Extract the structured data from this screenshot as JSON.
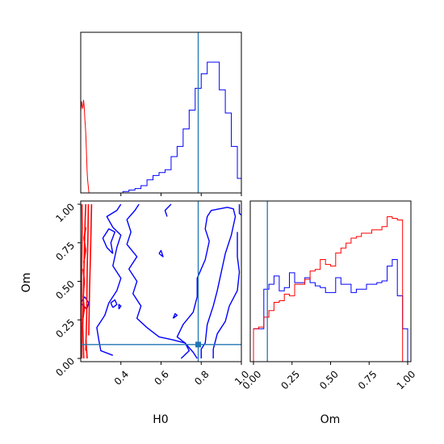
{
  "chart_data": [
    {
      "panel": "marginal-H0",
      "type": "histogram",
      "xlim": [
        0.2,
        1.0
      ],
      "truth_x": 0.785,
      "colors": {
        "blue": "#0000ff",
        "red": "#ff0000",
        "truth": "#1f77b4"
      },
      "series": [
        {
          "color": "red",
          "steps": [
            [
              0.2,
              0.56
            ],
            [
              0.202,
              0.6
            ],
            [
              0.204,
              0.63
            ],
            [
              0.206,
              0.61
            ],
            [
              0.209,
              0.58
            ],
            [
              0.212,
              0.6
            ],
            [
              0.214,
              0.64
            ],
            [
              0.217,
              0.6
            ],
            [
              0.219,
              0.55
            ],
            [
              0.221,
              0.5
            ],
            [
              0.224,
              0.44
            ],
            [
              0.226,
              0.38
            ],
            [
              0.228,
              0.3
            ],
            [
              0.23,
              0.22
            ],
            [
              0.232,
              0.14
            ],
            [
              0.235,
              0.08
            ],
            [
              0.238,
              0.04
            ],
            [
              0.24,
              0.01
            ],
            [
              0.242,
              0.0
            ]
          ]
        },
        {
          "color": "blue",
          "bins": [
            0.2,
            0.23,
            0.26,
            0.29,
            0.32,
            0.35,
            0.38,
            0.41,
            0.44,
            0.47,
            0.5,
            0.53,
            0.56,
            0.59,
            0.62,
            0.65,
            0.68,
            0.71,
            0.74,
            0.77,
            0.8,
            0.83,
            0.86,
            0.89,
            0.92,
            0.95,
            0.98,
            1.0
          ],
          "values": [
            0,
            0,
            0,
            0,
            0,
            0,
            0,
            0.01,
            0.02,
            0.03,
            0.05,
            0.09,
            0.12,
            0.14,
            0.16,
            0.25,
            0.32,
            0.44,
            0.57,
            0.72,
            0.82,
            0.9,
            0.9,
            0.71,
            0.55,
            0.32,
            0.1
          ]
        }
      ]
    },
    {
      "panel": "joint-H0-Om",
      "type": "contour",
      "xlabel": "H0",
      "ylabel": "Om",
      "xlim": [
        0.2,
        1.0
      ],
      "ylim": [
        0.0,
        1.0
      ],
      "xticks": [
        "0.4",
        "0.6",
        "0.8",
        "1.0"
      ],
      "yticks": [
        "0.00",
        "0.25",
        "0.50",
        "0.75",
        "1.00"
      ],
      "truth": [
        0.785,
        0.09
      ],
      "contours": [
        {
          "color": "blue",
          "points": [
            [
              0.4,
              1.0
            ],
            [
              0.38,
              0.96
            ],
            [
              0.33,
              0.92
            ],
            [
              0.36,
              0.85
            ],
            [
              0.4,
              0.8
            ],
            [
              0.38,
              0.72
            ],
            [
              0.36,
              0.6
            ],
            [
              0.4,
              0.52
            ],
            [
              0.38,
              0.44
            ],
            [
              0.34,
              0.36
            ],
            [
              0.32,
              0.28
            ],
            [
              0.28,
              0.2
            ],
            [
              0.29,
              0.12
            ],
            [
              0.3,
              0.05
            ],
            [
              0.36,
              0.02
            ]
          ]
        },
        {
          "color": "blue",
          "points": [
            [
              0.49,
              1.0
            ],
            [
              0.47,
              0.96
            ],
            [
              0.43,
              0.9
            ],
            [
              0.45,
              0.82
            ],
            [
              0.43,
              0.74
            ],
            [
              0.48,
              0.66
            ],
            [
              0.44,
              0.58
            ],
            [
              0.48,
              0.5
            ],
            [
              0.46,
              0.42
            ],
            [
              0.5,
              0.34
            ],
            [
              0.48,
              0.26
            ],
            [
              0.53,
              0.2
            ],
            [
              0.59,
              0.14
            ],
            [
              0.66,
              0.12
            ],
            [
              0.72,
              0.1
            ],
            [
              0.74,
              0.05
            ],
            [
              0.7,
              0.0
            ]
          ]
        },
        {
          "color": "blue",
          "points": [
            [
              0.36,
              0.68
            ],
            [
              0.33,
              0.72
            ],
            [
              0.31,
              0.78
            ],
            [
              0.34,
              0.84
            ],
            [
              0.37,
              0.82
            ],
            [
              0.35,
              0.75
            ],
            [
              0.36,
              0.68
            ]
          ]
        },
        {
          "color": "blue",
          "points": [
            [
              0.65,
              1.0
            ],
            [
              0.62,
              0.96
            ],
            [
              0.63,
              0.92
            ]
          ]
        },
        {
          "color": "blue",
          "points": [
            [
              0.22,
              0.4
            ],
            [
              0.24,
              0.36
            ],
            [
              0.23,
              0.32
            ],
            [
              0.2,
              0.36
            ],
            [
              0.22,
              0.4
            ]
          ]
        },
        {
          "color": "blue",
          "points": [
            [
              0.59,
              0.68
            ],
            [
              0.61,
              0.66
            ],
            [
              0.6,
              0.7
            ],
            [
              0.59,
              0.68
            ]
          ]
        },
        {
          "color": "blue",
          "points": [
            [
              0.36,
              0.33
            ],
            [
              0.38,
              0.35
            ],
            [
              0.37,
              0.38
            ],
            [
              0.35,
              0.36
            ],
            [
              0.36,
              0.33
            ]
          ]
        },
        {
          "color": "blue",
          "points": [
            [
              0.39,
              0.32
            ],
            [
              0.4,
              0.34
            ],
            [
              0.39,
              0.35
            ],
            [
              0.39,
              0.32
            ]
          ]
        },
        {
          "color": "blue",
          "points": [
            [
              0.66,
              0.26
            ],
            [
              0.68,
              0.28
            ],
            [
              0.67,
              0.29
            ],
            [
              0.66,
              0.26
            ]
          ]
        },
        {
          "color": "blue",
          "points": [
            [
              0.8,
              0.0
            ],
            [
              0.8,
              0.06
            ],
            [
              0.82,
              0.1
            ],
            [
              0.83,
              0.22
            ],
            [
              0.86,
              0.34
            ],
            [
              0.88,
              0.44
            ],
            [
              0.9,
              0.56
            ],
            [
              0.92,
              0.68
            ],
            [
              0.95,
              0.8
            ],
            [
              0.97,
              0.92
            ],
            [
              0.96,
              0.97
            ],
            [
              0.93,
              0.98
            ],
            [
              0.85,
              0.96
            ],
            [
              0.83,
              0.92
            ],
            [
              0.82,
              0.84
            ],
            [
              0.84,
              0.76
            ],
            [
              0.82,
              0.64
            ],
            [
              0.78,
              0.52
            ],
            [
              0.78,
              0.4
            ],
            [
              0.76,
              0.3
            ],
            [
              0.71,
              0.22
            ],
            [
              0.68,
              0.14
            ],
            [
              0.72,
              0.1
            ],
            [
              0.76,
              0.04
            ],
            [
              0.78,
              0.0
            ]
          ]
        },
        {
          "color": "blue",
          "points": [
            [
              0.86,
              0.0
            ],
            [
              0.86,
              0.06
            ],
            [
              0.88,
              0.16
            ],
            [
              0.92,
              0.24
            ],
            [
              0.94,
              0.34
            ],
            [
              0.98,
              0.44
            ],
            [
              0.99,
              0.56
            ],
            [
              0.98,
              0.66
            ],
            [
              0.98,
              0.82
            ]
          ]
        },
        {
          "color": "blue",
          "points": [
            [
              0.99,
              1.0
            ],
            [
              0.99,
              0.94
            ],
            [
              1.0,
              0.93
            ]
          ]
        },
        {
          "color": "red",
          "points": [
            [
              0.215,
              0.0
            ],
            [
              0.21,
              0.2
            ],
            [
              0.214,
              0.45
            ],
            [
              0.218,
              0.7
            ],
            [
              0.222,
              0.9
            ],
            [
              0.225,
              1.0
            ]
          ]
        },
        {
          "color": "red",
          "points": [
            [
              0.205,
              0.0
            ],
            [
              0.203,
              0.3
            ],
            [
              0.205,
              0.6
            ],
            [
              0.207,
              0.85
            ],
            [
              0.206,
              1.0
            ]
          ]
        },
        {
          "color": "red",
          "points": [
            [
              0.225,
              0.05
            ],
            [
              0.23,
              0.3
            ],
            [
              0.232,
              0.55
            ],
            [
              0.236,
              0.8
            ],
            [
              0.238,
              1.0
            ]
          ]
        },
        {
          "color": "red",
          "points": [
            [
              0.24,
              0.15
            ],
            [
              0.244,
              0.45
            ],
            [
              0.25,
              0.75
            ],
            [
              0.254,
              1.0
            ]
          ]
        },
        {
          "color": "red",
          "points": [
            [
              0.232,
              0.0
            ],
            [
              0.226,
              0.12
            ]
          ]
        },
        {
          "color": "red",
          "points": [
            [
              0.21,
              0.25
            ],
            [
              0.218,
              0.32
            ],
            [
              0.212,
              0.4
            ],
            [
              0.218,
              0.5
            ],
            [
              0.212,
              0.58
            ]
          ]
        },
        {
          "color": "red",
          "points": [
            [
              0.215,
              0.62
            ],
            [
              0.225,
              0.7
            ],
            [
              0.216,
              0.78
            ],
            [
              0.226,
              0.85
            ]
          ]
        }
      ]
    },
    {
      "panel": "marginal-Om",
      "type": "histogram",
      "xlabel": "Om",
      "xlim": [
        0.0,
        1.0
      ],
      "xticks": [
        "0.00",
        "0.25",
        "0.50",
        "0.75",
        "1.00"
      ],
      "truth_x": 0.09,
      "series": [
        {
          "color": "blue",
          "bins": [
            0.0,
            0.033,
            0.067,
            0.1,
            0.133,
            0.167,
            0.2,
            0.233,
            0.267,
            0.3,
            0.333,
            0.367,
            0.4,
            0.433,
            0.467,
            0.5,
            0.533,
            0.567,
            0.6,
            0.633,
            0.667,
            0.7,
            0.733,
            0.767,
            0.8,
            0.833,
            0.867,
            0.9,
            0.933,
            0.967,
            1.0
          ],
          "values": [
            0.2,
            0.2,
            0.44,
            0.47,
            0.52,
            0.43,
            0.45,
            0.54,
            0.48,
            0.48,
            0.51,
            0.48,
            0.46,
            0.45,
            0.42,
            0.42,
            0.51,
            0.47,
            0.47,
            0.42,
            0.44,
            0.44,
            0.47,
            0.47,
            0.48,
            0.49,
            0.58,
            0.62,
            0.4,
            0.2
          ]
        },
        {
          "color": "red",
          "bins": [
            0.0,
            0.033,
            0.067,
            0.1,
            0.133,
            0.167,
            0.2,
            0.233,
            0.267,
            0.3,
            0.333,
            0.367,
            0.4,
            0.433,
            0.467,
            0.5,
            0.533,
            0.567,
            0.6,
            0.633,
            0.667,
            0.7,
            0.733,
            0.767,
            0.8,
            0.833,
            0.867,
            0.9,
            0.933,
            0.967,
            1.0
          ],
          "values": [
            0.2,
            0.21,
            0.27,
            0.31,
            0.36,
            0.37,
            0.41,
            0.4,
            0.47,
            0.47,
            0.5,
            0.55,
            0.56,
            0.62,
            0.59,
            0.58,
            0.66,
            0.69,
            0.72,
            0.75,
            0.76,
            0.78,
            0.78,
            0.8,
            0.8,
            0.82,
            0.88,
            0.87,
            0.86,
            0.0
          ]
        }
      ]
    }
  ]
}
